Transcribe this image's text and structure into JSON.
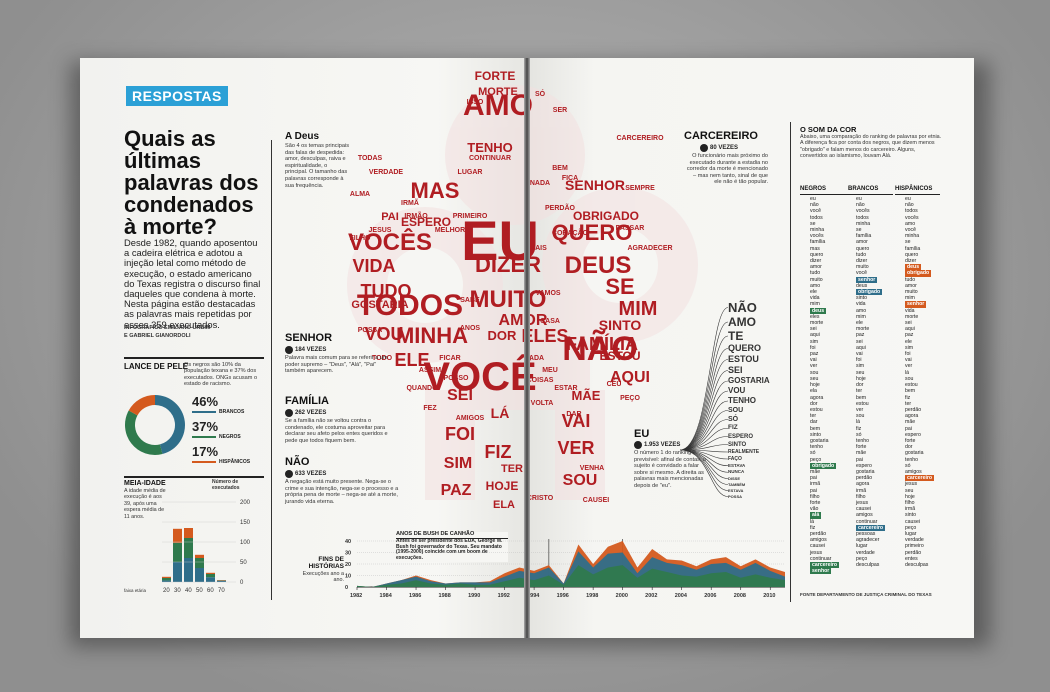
{
  "section_tag": "RESPOSTAS",
  "headline": "Quais as últimas palavras dos condenados à morte?",
  "intro": "Desde 1982, quando aposentou a cadeira elétrica e adotou a injeção letal como método de execução, o estado americano do Texas registra o discurso final daqueles que condena à morte. Nesta página estão destacadas as palavras mais repetidas por esses 359 executados.",
  "credits": [
    "INFOGRÁFICO EMILIANO URBIM",
    "E GABRIEL GIANORDOLI"
  ],
  "lance_de_pele": {
    "title": "LANCE DE PELE",
    "text": "Os negros são 10% da população texana e 37% dos executados. ONGs acusam o estado de racismo.",
    "items": [
      {
        "pct": "46%",
        "label": "BRANCOS",
        "color": "#2f6e8a",
        "value": 46
      },
      {
        "pct": "37%",
        "label": "NEGROS",
        "color": "#2f7a4d",
        "value": 37
      },
      {
        "pct": "17%",
        "label": "HISPÂNICOS",
        "color": "#d45a1e",
        "value": 17
      }
    ]
  },
  "meia_idade": {
    "title": "MEIA-IDADE",
    "text": "A idade média de execução é aos 39, após uma espera média de 11 anos.",
    "axis_label": "Número de executados",
    "y_ticks": [
      "200",
      "150",
      "100",
      "50",
      "0"
    ],
    "x_ticks": [
      "faixa etária",
      "20",
      "30",
      "40",
      "50",
      "60",
      "70"
    ]
  },
  "a_deus": {
    "title": "A Deus",
    "text": "São 4 os temas principais das falas de despedida: amor, desculpas, raiva e espiritualidade, o principal. O tamanho das palavras corresponde à sua frequência."
  },
  "senhor": {
    "title": "SENHOR",
    "count": "184 VEZES",
    "text": "Palavra mais comum para se referir a um poder supremo – \"Deus\", \"Alá\", \"Pai\" também aparecem."
  },
  "familia": {
    "title": "FAMÍLIA",
    "count": "262 VEZES",
    "text": "Se a família não se voltou contra o condenado, ele costuma aproveitar para declarar seu afeto pelos entes queridos e pede que todos fiquem bem."
  },
  "nao": {
    "title": "NÃO",
    "count": "633 VEZES",
    "text": "A negação está muito presente. Nega-se o crime e sua intenção, nega-se o processo e a própria pena de morte – nega-se até a morte, jurando vida eterna."
  },
  "carcereiro": {
    "title": "CARCEREIRO",
    "count": "80 VEZES",
    "text": "O funcionário mais próximo do executado durante a estadia no corredor da morte é mencionado – mas nem tanto, sinal de que ele não é tão popular."
  },
  "eu": {
    "title": "EU",
    "count": "1.953 VEZES",
    "text": "O número 1 do ranking é previsível: afinal de contas, o sujeito é convidado a falar sobre si mesmo. A direita as palavras mais mencionadas depois de \"eu\"."
  },
  "tree_words": [
    "NÃO",
    "AMO",
    "TE",
    "QUERO",
    "ESTOU",
    "SEI",
    "GOSTARIA",
    "VOU",
    "TENHO",
    "SOU",
    "SÓ",
    "FIZ",
    "ESPERO",
    "SINTO",
    "REALMENTE",
    "FAÇO",
    "ESTAVA",
    "NUNCA",
    "DISSE",
    "TAMBÉM",
    "ESTAVA",
    "POSSA"
  ],
  "wordcloud": {
    "big": [
      "EU",
      "AMO",
      "VOCÊ",
      "NÃO",
      "TODOS",
      "VOCÊS",
      "QUERO",
      "DEUS",
      "MAS",
      "MINHA",
      "SE",
      "MUITO",
      "DIZER",
      "VIDA",
      "TUDO",
      "VOU",
      "ELE",
      "AMOR",
      "MIM",
      "FAMÍLIA",
      "ELES",
      "AQUI",
      "SEI",
      "FOI",
      "SIM",
      "PAZ",
      "LÁ",
      "FIZ",
      "VAI",
      "VER",
      "SOU",
      "SENHOR",
      "ESPERO",
      "TENHO",
      "FORTE",
      "MORTE",
      "OBRIGADO",
      "SINTO",
      "GOSTARIA",
      "DOR",
      "ESTOU",
      "MÃE",
      "PAI",
      "HOJE",
      "TER",
      "ELA"
    ],
    "small": [
      "CARCEREIRO",
      "CONTINUAR",
      "SÓ",
      "SER",
      "BEM",
      "ISSO",
      "LUGAR",
      "NADA",
      "TODAS",
      "VERDADE",
      "IRMÃ",
      "IRMÃO",
      "JESUS",
      "PRIMEIRO",
      "MELHOR",
      "FILHO",
      "PERDÃO",
      "PASSAR",
      "AGRADECER",
      "CORAÇÃO",
      "MAIS",
      "CADA",
      "COISAS",
      "ANOS",
      "ASSIM",
      "POSSO",
      "QUANDO",
      "MEU",
      "ESTAR",
      "CÉU",
      "PEÇO",
      "DAR",
      "VENHA",
      "CAUSEI",
      "AMIGOS",
      "POSSA",
      "TODO",
      "FICAR",
      "VAMOS",
      "CASA",
      "VOLTA",
      "SABE",
      "FEZ",
      "FICA",
      "SEMPRE",
      "ALMA",
      "CRISTO"
    ]
  },
  "som_da_cor": {
    "title": "O SOM DA COR",
    "text": "Abaixo, uma comparação do ranking de palavras por etnia. A diferença fica por conta dos negros, que dizem menos \"obrigado\" e falam menos do carcereiro. Alguns, convertidos ao islamismo, louvam Alá.",
    "headers": [
      "NEGROS",
      "BRANCOS",
      "HISPÂNICOS"
    ],
    "negros": [
      "eu",
      "não",
      "você",
      "todos",
      "se",
      "minha",
      "vocês",
      "família",
      "mas",
      "quero",
      "dizer",
      "amor",
      "tudo",
      "muito",
      "amo",
      "ele",
      "vida",
      "mim",
      "deus",
      "eles",
      "morte",
      "sei",
      "aqui",
      "sim",
      "foi",
      "paz",
      "vai",
      "ver",
      "sou",
      "seu",
      "hoje",
      "ela",
      "agora",
      "dor",
      "estou",
      "ter",
      "dar",
      "bem",
      "sinto",
      "gostaria",
      "tenho",
      "só",
      "peço",
      "obrigado",
      "mãe",
      "pai",
      "irmã",
      "pai",
      "filho",
      "forte",
      "vão",
      "alá",
      "lá",
      "fiz",
      "perdão",
      "amigos",
      "causei",
      "jesus",
      "continuar",
      "carcereiro",
      "senhor"
    ],
    "brancos": [
      "eu",
      "não",
      "vocês",
      "todos",
      "minha",
      "se",
      "família",
      "amor",
      "quero",
      "tudo",
      "dizer",
      "muito",
      "você",
      "senhor",
      "deus",
      "obrigado",
      "sinto",
      "vida",
      "amo",
      "mim",
      "ele",
      "morte",
      "paz",
      "sei",
      "aqui",
      "vai",
      "foi",
      "sim",
      "seu",
      "hoje",
      "dor",
      "ter",
      "bem",
      "estou",
      "ver",
      "sou",
      "lá",
      "fiz",
      "só",
      "tenho",
      "forte",
      "mãe",
      "pai",
      "espero",
      "gostaria",
      "perdão",
      "agora",
      "irmã",
      "filho",
      "jesus",
      "causei",
      "amigos",
      "continuar",
      "carcereiro",
      "pessoas",
      "agradecer",
      "lugar",
      "verdade",
      "peço",
      "desculpas"
    ],
    "hispanicos": [
      "eu",
      "não",
      "todos",
      "vocês",
      "amo",
      "você",
      "minha",
      "se",
      "família",
      "quero",
      "dizer",
      "deus",
      "obrigado",
      "tudo",
      "amor",
      "muito",
      "mim",
      "senhor",
      "vida",
      "morte",
      "sei",
      "aqui",
      "paz",
      "ele",
      "sim",
      "foi",
      "vai",
      "ver",
      "lá",
      "sou",
      "estou",
      "bem",
      "fiz",
      "ter",
      "perdão",
      "agora",
      "mãe",
      "pai",
      "espero",
      "forte",
      "dor",
      "gostaria",
      "tenho",
      "só",
      "amigos",
      "carcereiro",
      "jesus",
      "seu",
      "hoje",
      "filho",
      "irmã",
      "sinto",
      "causei",
      "peço",
      "lugar",
      "verdade",
      "primeiro",
      "perdão",
      "entes",
      "desculpas"
    ],
    "source": "FONTE DEPARTAMENTO DE JUSTIÇA CRIMINAL DO TEXAS"
  },
  "timeline": {
    "title": "FINS DE HISTÓRIAS",
    "text": "Execuções ano a ano.",
    "annotation_title": "ANOS DE BUSH DE CANHÃO",
    "annotation_text": "Antes de ser presidente dos EUA, George W. Bush foi governador do Texas. Seu mandato (1995-2000) coincide com um boom de execuções.",
    "y_ticks": [
      "40",
      "30",
      "20",
      "10",
      "0"
    ],
    "x_ticks": [
      "1982",
      "1984",
      "1986",
      "1988",
      "1990",
      "1992",
      "1994",
      "1996",
      "1998",
      "2000",
      "2002",
      "2004",
      "2006",
      "2008",
      "2010"
    ]
  },
  "chart_data": [
    {
      "type": "pie",
      "title": "LANCE DE PELE",
      "categories": [
        "BRANCOS",
        "NEGROS",
        "HISPÂNICOS"
      ],
      "values": [
        46,
        37,
        17
      ]
    },
    {
      "type": "bar",
      "title": "MEIA-IDADE",
      "ylabel": "Número de executados",
      "xlabel": "faixa etária",
      "categories": [
        "20",
        "30",
        "40",
        "50",
        "60",
        "70"
      ],
      "series": [
        {
          "name": "BRANCOS",
          "values": [
            4,
            50,
            60,
            35,
            12,
            3
          ]
        },
        {
          "name": "NEGROS",
          "values": [
            6,
            48,
            50,
            25,
            8,
            1
          ]
        },
        {
          "name": "HISPÂNICOS",
          "values": [
            3,
            35,
            25,
            8,
            3,
            1
          ]
        }
      ],
      "ylim": [
        0,
        200
      ]
    },
    {
      "type": "area",
      "title": "FINS DE HISTÓRIAS",
      "x": [
        1982,
        1983,
        1984,
        1985,
        1986,
        1987,
        1988,
        1989,
        1990,
        1991,
        1992,
        1993,
        1994,
        1995,
        1996,
        1997,
        1998,
        1999,
        2000,
        2001,
        2002,
        2003,
        2004,
        2005,
        2006,
        2007,
        2008,
        2009,
        2010,
        2011
      ],
      "series": [
        {
          "name": "BRANCOS",
          "values": [
            1,
            0,
            2,
            3,
            6,
            3,
            2,
            3,
            2,
            2,
            5,
            8,
            6,
            10,
            2,
            19,
            11,
            17,
            19,
            8,
            16,
            13,
            10,
            9,
            12,
            13,
            8,
            11,
            8,
            6
          ]
        },
        {
          "name": "NEGROS",
          "values": [
            0,
            0,
            1,
            3,
            3,
            2,
            1,
            1,
            2,
            2,
            4,
            6,
            6,
            7,
            1,
            12,
            6,
            12,
            11,
            4,
            10,
            8,
            9,
            6,
            8,
            8,
            7,
            10,
            6,
            3
          ]
        },
        {
          "name": "HISPÂNICOS",
          "values": [
            0,
            0,
            0,
            0,
            1,
            1,
            0,
            0,
            0,
            1,
            3,
            3,
            2,
            2,
            0,
            6,
            3,
            6,
            10,
            5,
            7,
            3,
            4,
            3,
            4,
            5,
            3,
            3,
            3,
            4
          ]
        }
      ],
      "ylim": [
        0,
        40
      ]
    }
  ]
}
